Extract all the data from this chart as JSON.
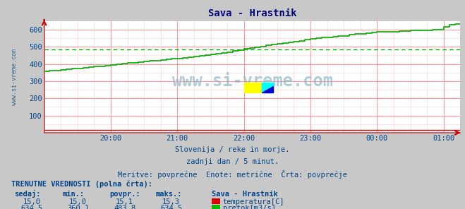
{
  "title": "Sava - Hrastnik",
  "fig_bg_color": "#c8c8c8",
  "plot_bg_color": "#ffffff",
  "grid_major_color": "#ff9999",
  "grid_minor_color": "#ffdddd",
  "text_color": "#004488",
  "bold_text_color": "#003377",
  "ylabel_text": "www.si-vreme.com",
  "watermark_text": "www.si-vreme.com",
  "subtitle1": "Slovenija / reke in morje.",
  "subtitle2": "zadnji dan / 5 minut.",
  "subtitle3": "Meritve: povprečne  Enote: metrične  Črta: povprečje",
  "table_header": "TRENUTNE VREDNOSTI (polna črta):",
  "col_headers": [
    "sedaj:",
    "min.:",
    "povpr.:",
    "maks.:",
    "Sava - Hrastnik"
  ],
  "row1_vals": [
    "15,0",
    "15,0",
    "15,1",
    "15,3"
  ],
  "row1_label": "temperatura[C]",
  "row1_color": "#dd0000",
  "row2_vals": [
    "634,5",
    "360,1",
    "483,8",
    "634,5"
  ],
  "row2_label": "pretok[m3/s]",
  "row2_color": "#00bb00",
  "xtick_positions": [
    60,
    120,
    180,
    240,
    300,
    360
  ],
  "xtick_labels": [
    "20:00",
    "21:00",
    "22:00",
    "23:00",
    "00:00",
    "01:00"
  ],
  "ylim": [
    0,
    650
  ],
  "ytick_positions": [
    100,
    200,
    300,
    400,
    500,
    600
  ],
  "avg_flow": 483.8,
  "flow_color": "#00aa00",
  "temp_color": "#cc0000",
  "avg_color_dashed": "#00aa00",
  "arrow_color": "#cc0000",
  "spine_color": "#cc4444",
  "xmax": 375
}
